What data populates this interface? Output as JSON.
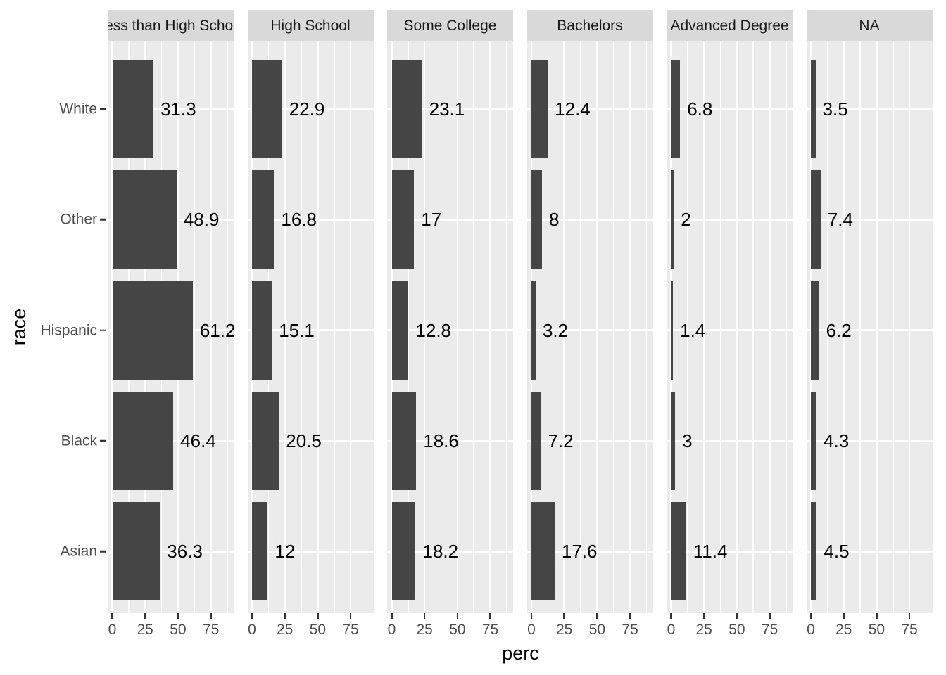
{
  "chart_data": {
    "type": "bar",
    "orientation": "horizontal",
    "title": "",
    "xlabel": "perc",
    "ylabel": "race",
    "facet_variable_values": [
      "Less than High School",
      "High School",
      "Some College",
      "Bachelors",
      "Advanced Degree",
      "NA"
    ],
    "categories": [
      "White",
      "Other",
      "Hispanic",
      "Black",
      "Asian"
    ],
    "series": [
      {
        "name": "Less than High School",
        "values": [
          31.3,
          48.9,
          61.2,
          46.4,
          36.3
        ]
      },
      {
        "name": "High School",
        "values": [
          22.9,
          16.8,
          15.1,
          20.5,
          12
        ]
      },
      {
        "name": "Some College",
        "values": [
          23.1,
          17,
          12.8,
          18.6,
          18.2
        ]
      },
      {
        "name": "Bachelors",
        "values": [
          12.4,
          8,
          3.2,
          7.2,
          17.6
        ]
      },
      {
        "name": "Advanced Degree",
        "values": [
          6.8,
          2,
          1.4,
          3,
          11.4
        ]
      },
      {
        "name": "NA",
        "values": [
          3.5,
          7.4,
          6.2,
          4.3,
          4.5
        ]
      }
    ],
    "x_ticks": [
      0,
      25,
      50,
      75
    ],
    "x_minor_ticks": [
      12.5,
      37.5,
      62.5,
      87.5
    ],
    "xlim": [
      0,
      92.5
    ],
    "grid": "on",
    "bar_labels_shown": true,
    "legend": "none",
    "colors": {
      "bar_fill": "#454545",
      "panel_background": "#EBEBEB",
      "strip_background": "#D9D9D9",
      "gridline": "#FFFFFF",
      "axis_text": "#4D4D4D",
      "strip_text": "#1A1A1A",
      "axis_title": "#000000",
      "bar_label_text": "#000000",
      "tick_mark": "#333333"
    }
  }
}
